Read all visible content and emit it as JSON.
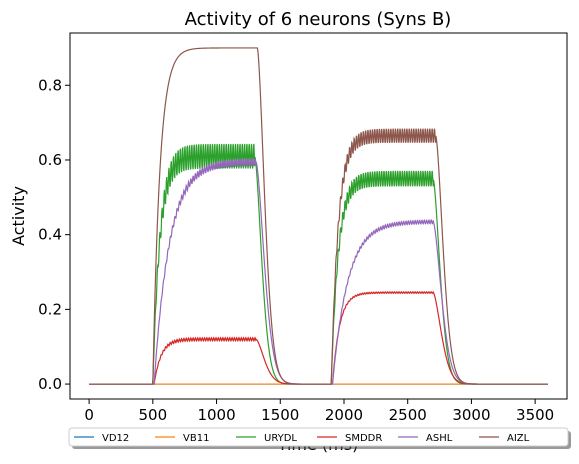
{
  "chart_data": {
    "type": "line",
    "title": "Activity of 6 neurons (Syns B)",
    "xlabel": "Time (ms)",
    "ylabel": "Activity",
    "xlim": [
      -150,
      3750
    ],
    "ylim": [
      -0.04,
      0.94
    ],
    "xticks": [
      0,
      500,
      1000,
      1500,
      2000,
      2500,
      3000,
      3500
    ],
    "yticks": [
      0.0,
      0.2,
      0.4,
      0.6,
      0.8
    ],
    "legend_position": "bottom",
    "series": [
      {
        "name": "VD12",
        "color": "#1f77b4",
        "kind": "flat",
        "level": 0.0
      },
      {
        "name": "VB11",
        "color": "#ff7f0e",
        "kind": "flat",
        "level": 0.0
      },
      {
        "name": "URYDL",
        "color": "#2ca02c",
        "kind": "pulse",
        "onsets": [
          500,
          1900
        ],
        "offsets": [
          1300,
          2700
        ],
        "plateaus": [
          0.61,
          0.55
        ],
        "amplitudes": [
          0.035,
          0.022
        ],
        "rise": 55,
        "decay": 75
      },
      {
        "name": "SMDDR",
        "color": "#d62728",
        "kind": "pulse",
        "onsets": [
          510,
          1910
        ],
        "offsets": [
          1310,
          2700
        ],
        "plateaus": [
          0.12,
          0.245
        ],
        "amplitudes": [
          0.004,
          0.002
        ],
        "rise": 55,
        "decay": 90
      },
      {
        "name": "ASHL",
        "color": "#9467bd",
        "kind": "pulse",
        "onsets": [
          510,
          1910
        ],
        "offsets": [
          1310,
          2700
        ],
        "plateaus": [
          0.595,
          0.435
        ],
        "amplitudes": [
          0.01,
          0.005
        ],
        "rise": 120,
        "decay": 90
      },
      {
        "name": "AIZL",
        "color": "#8c564b",
        "kind": "pulse",
        "onsets": [
          500,
          1900
        ],
        "offsets": [
          1320,
          2720
        ],
        "plateaus": [
          0.9,
          0.665
        ],
        "amplitudes": [
          0.0,
          0.02
        ],
        "rise": 55,
        "decay": 80
      }
    ]
  }
}
